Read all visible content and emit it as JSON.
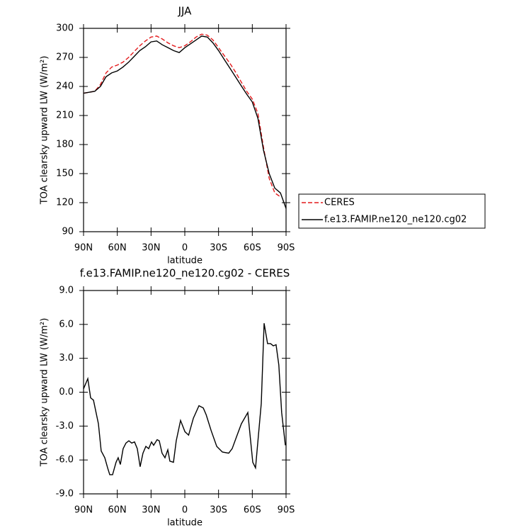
{
  "chart_data": [
    {
      "type": "line",
      "title": "JJA",
      "xlabel": "latitude",
      "ylabel": "TOA clearsky upward LW (W/m²)",
      "xlim": [
        90,
        -90
      ],
      "ylim": [
        90,
        300
      ],
      "xticks": [
        {
          "value": 90,
          "label": "90N"
        },
        {
          "value": 60,
          "label": "60N"
        },
        {
          "value": 30,
          "label": "30N"
        },
        0,
        {
          "value": -30,
          "label": "30S"
        },
        {
          "value": -60,
          "label": "60S"
        },
        {
          "value": -90,
          "label": "90S"
        }
      ],
      "yticks": [
        90,
        120,
        150,
        180,
        210,
        240,
        270,
        300
      ],
      "grid": false,
      "legend": "right",
      "x": [
        90,
        85,
        80,
        75,
        70,
        65,
        60,
        55,
        50,
        45,
        40,
        35,
        30,
        25,
        20,
        15,
        10,
        5,
        0,
        -5,
        -10,
        -15,
        -20,
        -25,
        -30,
        -35,
        -40,
        -45,
        -50,
        -55,
        -60,
        -65,
        -70,
        -75,
        -80,
        -85,
        -90
      ],
      "series": [
        {
          "name": "CERES",
          "color": "#e41a1c",
          "dash": true,
          "values": [
            233,
            234,
            235,
            242,
            254,
            260,
            262,
            265,
            270,
            276,
            282,
            287,
            291,
            292,
            289,
            285,
            282,
            280,
            282,
            286,
            291,
            294,
            293,
            288,
            280,
            272,
            264,
            255,
            245,
            235,
            227,
            212,
            177,
            145,
            130,
            126,
            null
          ]
        },
        {
          "name": "f.e13.FAMIP.ne120_ne120.cg02",
          "color": "#000000",
          "dash": false,
          "values": [
            233,
            234,
            235,
            240,
            250,
            254,
            256,
            260,
            265,
            271,
            277,
            281,
            286,
            287,
            283,
            280,
            277,
            275,
            280,
            284,
            288,
            292,
            291,
            285,
            277,
            268,
            259,
            250,
            241,
            232,
            224,
            207,
            174,
            150,
            135,
            130,
            114
          ]
        }
      ]
    },
    {
      "type": "line",
      "title": "f.e13.FAMIP.ne120_ne120.cg02 - CERES",
      "xlabel": "latitude",
      "ylabel": "TOA clearsky upward LW (W/m²)",
      "xlim": [
        90,
        -90
      ],
      "ylim": [
        -9,
        9
      ],
      "xticks": [
        {
          "value": 90,
          "label": "90N"
        },
        {
          "value": 60,
          "label": "60N"
        },
        {
          "value": 30,
          "label": "30N"
        },
        0,
        {
          "value": -30,
          "label": "30S"
        },
        {
          "value": -60,
          "label": "60S"
        },
        {
          "value": -90,
          "label": "90S"
        }
      ],
      "yticks": [
        {
          "value": -9,
          "label": "-9.0"
        },
        {
          "value": -6,
          "label": "-6.0"
        },
        {
          "value": -3,
          "label": "-3.0"
        },
        {
          "value": 0,
          "label": "0.0"
        },
        {
          "value": 3,
          "label": "3.0"
        },
        {
          "value": 6,
          "label": "6.0"
        },
        {
          "value": 9,
          "label": "9.0"
        }
      ],
      "grid": false,
      "x": [
        90,
        86.2,
        83.7,
        81.2,
        76.8,
        74.3,
        71.1,
        68.6,
        66.7,
        64.2,
        61.1,
        59.2,
        57.3,
        54.8,
        52.3,
        49.7,
        47.2,
        44.7,
        42.2,
        39.7,
        37.2,
        34.6,
        32.1,
        29.6,
        27.7,
        24.6,
        22.7,
        20.2,
        17.6,
        15.1,
        13.3,
        10.1,
        7.6,
        3.8,
        -0.1,
        -3.4,
        -7.6,
        -12.6,
        -16.4,
        -19,
        -23.4,
        -28.4,
        -33.4,
        -39,
        -42.1,
        -46.5,
        -50.3,
        -56,
        -60.4,
        -62.9,
        -68,
        -70.5,
        -73.6,
        -76.2,
        -78.7,
        -81.1,
        -83.6,
        -86.1,
        -89.4
      ],
      "series": [
        {
          "name": "f.e13.FAMIP.ne120_ne120.cg02 - CERES",
          "color": "#000000",
          "dash": false,
          "values": [
            0.3,
            1.2,
            -0.5,
            -0.7,
            -2.8,
            -5.2,
            -5.8,
            -6.7,
            -7.3,
            -7.3,
            -6.2,
            -5.8,
            -6.4,
            -5.0,
            -4.5,
            -4.3,
            -4.5,
            -4.4,
            -5.0,
            -6.6,
            -5.4,
            -4.8,
            -5.0,
            -4.4,
            -4.7,
            -4.2,
            -4.3,
            -5.4,
            -5.8,
            -5.1,
            -6.1,
            -6.2,
            -4.3,
            -2.5,
            -3.5,
            -3.8,
            -2.3,
            -1.2,
            -1.4,
            -2.0,
            -3.4,
            -4.8,
            -5.3,
            -5.4,
            -5.0,
            -3.8,
            -2.8,
            -1.8,
            -6.2,
            -6.7,
            -1.0,
            6.1,
            4.3,
            4.3,
            4.1,
            4.2,
            2.4,
            -1.8,
            -4.7
          ]
        }
      ]
    }
  ]
}
